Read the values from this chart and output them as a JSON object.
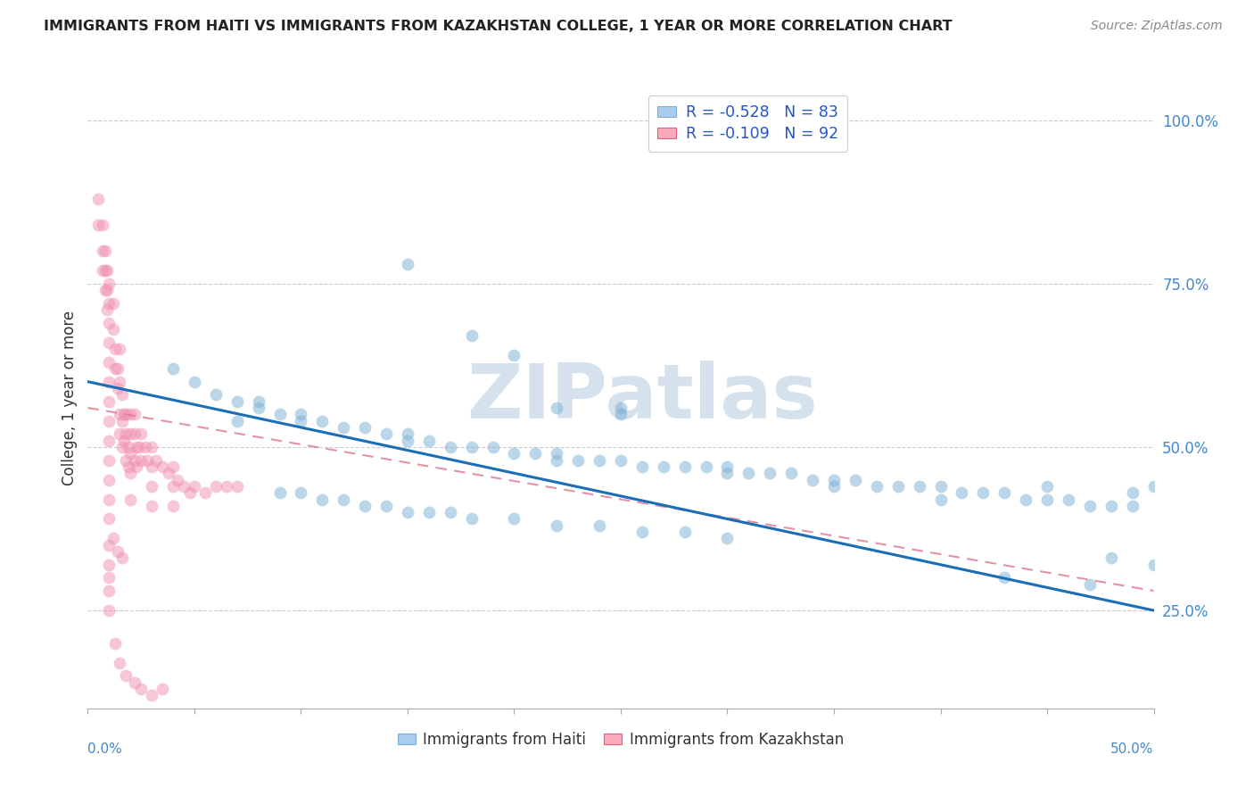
{
  "title": "IMMIGRANTS FROM HAITI VS IMMIGRANTS FROM KAZAKHSTAN COLLEGE, 1 YEAR OR MORE CORRELATION CHART",
  "source": "Source: ZipAtlas.com",
  "ylabel": "College, 1 year or more",
  "right_yticks": [
    "25.0%",
    "50.0%",
    "75.0%",
    "100.0%"
  ],
  "right_ytick_vals": [
    0.25,
    0.5,
    0.75,
    1.0
  ],
  "legend_top": [
    {
      "label_r": "R = -0.528",
      "label_n": "N = 83",
      "color": "#aaccee"
    },
    {
      "label_r": "R = -0.109",
      "label_n": "N = 92",
      "color": "#f9aabb"
    }
  ],
  "legend_labels_bottom": [
    "Immigrants from Haiti",
    "Immigrants from Kazakhstan"
  ],
  "haiti_color": "#7bafd4",
  "haiti_edge": "#5590bb",
  "kazakhstan_color": "#f090b0",
  "kazakhstan_edge": "#e06080",
  "haiti_trend_color": "#1a6eb5",
  "kazakhstan_trend_color": "#d0708080",
  "xmin": 0.0,
  "xmax": 0.5,
  "ymin": 0.1,
  "ymax": 1.05,
  "watermark": "ZIPatlas",
  "watermark_color": "#c8d8e8",
  "background_color": "#ffffff",
  "haiti_scatter_x": [
    0.04,
    0.05,
    0.06,
    0.07,
    0.08,
    0.08,
    0.09,
    0.1,
    0.1,
    0.11,
    0.12,
    0.13,
    0.14,
    0.15,
    0.15,
    0.16,
    0.17,
    0.18,
    0.19,
    0.2,
    0.21,
    0.22,
    0.22,
    0.23,
    0.24,
    0.25,
    0.26,
    0.27,
    0.28,
    0.29,
    0.3,
    0.31,
    0.32,
    0.33,
    0.34,
    0.35,
    0.36,
    0.37,
    0.38,
    0.39,
    0.4,
    0.41,
    0.42,
    0.43,
    0.44,
    0.45,
    0.46,
    0.47,
    0.48,
    0.49,
    0.09,
    0.1,
    0.11,
    0.12,
    0.13,
    0.14,
    0.15,
    0.16,
    0.17,
    0.18,
    0.2,
    0.22,
    0.24,
    0.26,
    0.28,
    0.3,
    0.15,
    0.18,
    0.2,
    0.22,
    0.25,
    0.25,
    0.3,
    0.35,
    0.4,
    0.43,
    0.45,
    0.47,
    0.48,
    0.5,
    0.5,
    0.49,
    0.07
  ],
  "haiti_scatter_y": [
    0.62,
    0.6,
    0.58,
    0.57,
    0.57,
    0.56,
    0.55,
    0.55,
    0.54,
    0.54,
    0.53,
    0.53,
    0.52,
    0.52,
    0.51,
    0.51,
    0.5,
    0.5,
    0.5,
    0.49,
    0.49,
    0.49,
    0.48,
    0.48,
    0.48,
    0.48,
    0.47,
    0.47,
    0.47,
    0.47,
    0.46,
    0.46,
    0.46,
    0.46,
    0.45,
    0.45,
    0.45,
    0.44,
    0.44,
    0.44,
    0.44,
    0.43,
    0.43,
    0.43,
    0.42,
    0.42,
    0.42,
    0.41,
    0.41,
    0.41,
    0.43,
    0.43,
    0.42,
    0.42,
    0.41,
    0.41,
    0.4,
    0.4,
    0.4,
    0.39,
    0.39,
    0.38,
    0.38,
    0.37,
    0.37,
    0.36,
    0.78,
    0.67,
    0.64,
    0.56,
    0.56,
    0.55,
    0.47,
    0.44,
    0.42,
    0.3,
    0.44,
    0.29,
    0.33,
    0.32,
    0.44,
    0.43,
    0.54
  ],
  "kazakhstan_scatter_x": [
    0.005,
    0.005,
    0.007,
    0.007,
    0.007,
    0.008,
    0.008,
    0.008,
    0.009,
    0.009,
    0.009,
    0.01,
    0.01,
    0.01,
    0.01,
    0.01,
    0.01,
    0.01,
    0.01,
    0.01,
    0.01,
    0.01,
    0.01,
    0.01,
    0.012,
    0.012,
    0.013,
    0.013,
    0.014,
    0.014,
    0.015,
    0.015,
    0.015,
    0.015,
    0.016,
    0.016,
    0.016,
    0.017,
    0.017,
    0.018,
    0.018,
    0.018,
    0.019,
    0.019,
    0.02,
    0.02,
    0.02,
    0.02,
    0.02,
    0.022,
    0.022,
    0.022,
    0.023,
    0.023,
    0.024,
    0.025,
    0.025,
    0.027,
    0.028,
    0.03,
    0.03,
    0.03,
    0.03,
    0.032,
    0.035,
    0.038,
    0.04,
    0.04,
    0.04,
    0.042,
    0.045,
    0.048,
    0.05,
    0.055,
    0.06,
    0.065,
    0.07,
    0.013,
    0.015,
    0.018,
    0.022,
    0.025,
    0.03,
    0.035,
    0.012,
    0.014,
    0.016,
    0.01,
    0.01,
    0.01,
    0.01,
    0.01
  ],
  "kazakhstan_scatter_y": [
    0.88,
    0.84,
    0.84,
    0.8,
    0.77,
    0.8,
    0.77,
    0.74,
    0.77,
    0.74,
    0.71,
    0.75,
    0.72,
    0.69,
    0.66,
    0.63,
    0.6,
    0.57,
    0.54,
    0.51,
    0.48,
    0.45,
    0.42,
    0.39,
    0.72,
    0.68,
    0.65,
    0.62,
    0.62,
    0.59,
    0.65,
    0.6,
    0.55,
    0.52,
    0.58,
    0.54,
    0.5,
    0.55,
    0.51,
    0.55,
    0.52,
    0.48,
    0.5,
    0.47,
    0.55,
    0.52,
    0.49,
    0.46,
    0.42,
    0.55,
    0.52,
    0.48,
    0.5,
    0.47,
    0.5,
    0.52,
    0.48,
    0.5,
    0.48,
    0.5,
    0.47,
    0.44,
    0.41,
    0.48,
    0.47,
    0.46,
    0.47,
    0.44,
    0.41,
    0.45,
    0.44,
    0.43,
    0.44,
    0.43,
    0.44,
    0.44,
    0.44,
    0.2,
    0.17,
    0.15,
    0.14,
    0.13,
    0.12,
    0.13,
    0.36,
    0.34,
    0.33,
    0.35,
    0.32,
    0.3,
    0.28,
    0.25
  ]
}
